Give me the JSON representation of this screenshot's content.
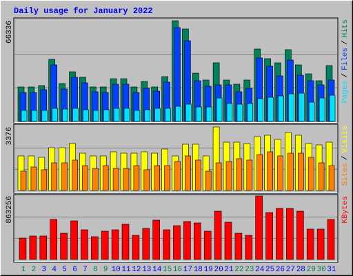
{
  "chart_data": [
    {
      "type": "bar",
      "title": "Daily usage for January 2022",
      "legend_separator": "/",
      "ylim": [
        0,
        66336
      ],
      "yticks": [
        66336
      ],
      "grid": true,
      "series": [
        {
          "name": "Hits",
          "color": "#00805c",
          "values": [
            22720,
            22720,
            23630,
            40900,
            24990,
            32720,
            29080,
            22720,
            22720,
            28170,
            28170,
            22720,
            26350,
            22720,
            29540,
            66336,
            60890,
            31810,
            27260,
            38620,
            27260,
            24540,
            27260,
            47710,
            41350,
            38620,
            47260,
            37260,
            31350,
            26810,
            36810
          ]
        },
        {
          "name": "Files",
          "color": "#0040ff",
          "values": [
            19080,
            19080,
            20900,
            37260,
            21360,
            29080,
            25450,
            19540,
            19080,
            24540,
            24540,
            19080,
            21810,
            19990,
            25900,
            61800,
            53160,
            26810,
            23170,
            24080,
            24080,
            19540,
            21810,
            41800,
            36350,
            29990,
            40440,
            30440,
            26810,
            24080,
            27260
          ]
        },
        {
          "name": "Pages",
          "color": "#00e0ff",
          "values": [
            7270,
            7270,
            7270,
            8630,
            8180,
            8630,
            7720,
            7270,
            7720,
            8630,
            8630,
            7270,
            7720,
            8630,
            8630,
            10000,
            11360,
            9540,
            9540,
            15450,
            11810,
            11360,
            11810,
            15000,
            15900,
            16810,
            18180,
            18630,
            12720,
            15450,
            17270
          ]
        }
      ]
    },
    {
      "type": "bar",
      "legend_separator": "/",
      "ylim": [
        0,
        3376
      ],
      "yticks": [
        3376
      ],
      "grid": true,
      "series": [
        {
          "name": "Visits",
          "color": "#ffff00",
          "values": [
            1835,
            1835,
            1762,
            2275,
            2275,
            2496,
            1982,
            1835,
            1835,
            2055,
            1982,
            1982,
            2055,
            1982,
            2202,
            1835,
            2459,
            2459,
            1835,
            3376,
            2569,
            2569,
            2496,
            2863,
            2936,
            2716,
            3083,
            2936,
            2496,
            2422,
            2569
          ]
        },
        {
          "name": "Sites",
          "color": "#ff8000",
          "values": [
            1028,
            1248,
            1101,
            1468,
            1468,
            1615,
            1321,
            1174,
            1321,
            1174,
            1174,
            1321,
            1101,
            1321,
            1321,
            1541,
            1835,
            1615,
            1028,
            1468,
            1541,
            1688,
            1615,
            1908,
            2055,
            1835,
            1982,
            1982,
            1762,
            1468,
            1321
          ]
        }
      ]
    },
    {
      "type": "bar",
      "ylim": [
        0,
        863256
      ],
      "yticks": [
        863256
      ],
      "grid": true,
      "categories": [
        "1",
        "2",
        "3",
        "4",
        "5",
        "6",
        "7",
        "8",
        "9",
        "10",
        "11",
        "12",
        "13",
        "14",
        "15",
        "16",
        "17",
        "18",
        "19",
        "20",
        "21",
        "22",
        "23",
        "24",
        "25",
        "26",
        "27",
        "28",
        "29",
        "30",
        "31"
      ],
      "category_colors": [
        "#00805c",
        "#00805c",
        "#0000ff",
        "#0000ff",
        "#0000ff",
        "#0000ff",
        "#0000ff",
        "#00805c",
        "#00805c",
        "#0000ff",
        "#0000ff",
        "#0000ff",
        "#0000ff",
        "#0000ff",
        "#00805c",
        "#00805c",
        "#0000ff",
        "#0000ff",
        "#0000ff",
        "#0000ff",
        "#0000ff",
        "#00805c",
        "#00805c",
        "#0000ff",
        "#0000ff",
        "#0000ff",
        "#0000ff",
        "#0000ff",
        "#00805c",
        "#00805c",
        "#0000ff"
      ],
      "series": [
        {
          "name": "KBytes",
          "color": "#ff0000",
          "values": [
            290870,
            319020,
            319020,
            544210,
            356550,
            525450,
            403470,
            309640,
            384700,
            403470,
            478530,
            328410,
            422240,
            534830,
            403470,
            459770,
            516070,
            497300,
            384700,
            656810,
            506680,
            356550,
            328410,
            863256,
            638040,
            694340,
            694340,
            656810,
            412850,
            412850,
            544210
          ]
        }
      ]
    }
  ]
}
